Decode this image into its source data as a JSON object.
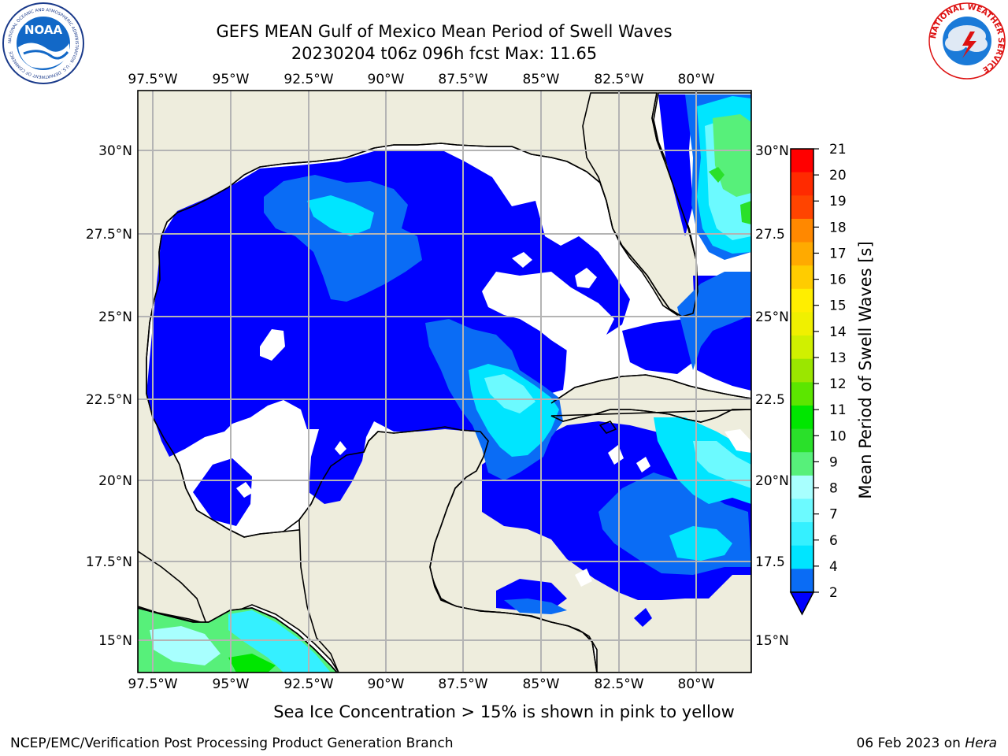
{
  "header": {
    "title_line1": "GEFS MEAN Gulf of Mexico Mean Period of Swell Waves",
    "title_line2": "20230204 t06z 096h fcst   Max: 11.65"
  },
  "logos": {
    "left_text": "NOAA",
    "left_ring_text": "NATIONAL OCEANIC AND ATMOSPHERIC ADMINISTRATION · U.S. DEPARTMENT OF COMMERCE",
    "right_ring_text": "NATIONAL WEATHER SERVICE"
  },
  "map": {
    "lon_labels": [
      "97.5°W",
      "95°W",
      "92.5°W",
      "90°W",
      "87.5°W",
      "85°W",
      "82.5°W",
      "80°W"
    ],
    "lat_labels_left": [
      "30°N",
      "27.5°N",
      "25°N",
      "22.5°N",
      "20°N",
      "17.5°N",
      "15°N"
    ],
    "lat_labels_right": [
      "30°N",
      "27.5",
      "25°N",
      "22.5",
      "20°N",
      "17.5",
      "15°N"
    ],
    "colors": {
      "land": "#eeeddd",
      "ocean_nodata": "#ffffff",
      "coast": "#000000",
      "grid": "#b4b4b4"
    }
  },
  "colorbar": {
    "label": "Mean Period of Swell Waves [s]",
    "ticks": [
      "2",
      "4",
      "6",
      "7",
      "8",
      "9",
      "10",
      "11",
      "12",
      "13",
      "14",
      "15",
      "16",
      "17",
      "18",
      "19",
      "20",
      "21"
    ],
    "colors": [
      "#0a6cf5",
      "#00e5ff",
      "#35f0ff",
      "#6cfaff",
      "#a8fffe",
      "#57f07a",
      "#2ae02a",
      "#00e600",
      "#5ce600",
      "#9be600",
      "#d0f000",
      "#f0f000",
      "#ffee00",
      "#ffcc00",
      "#ffaa00",
      "#ff8800",
      "#ff4400",
      "#ff2a00",
      "#ff0000"
    ],
    "extend_color": "#0000ff"
  },
  "note": "Sea Ice Concentration > 15% is shown in pink to yellow",
  "footer": {
    "left": "NCEP/EMC/Verification Post Processing Product Generation Branch",
    "right_prefix": "06 Feb 2023 on ",
    "right_host": "Hera"
  }
}
